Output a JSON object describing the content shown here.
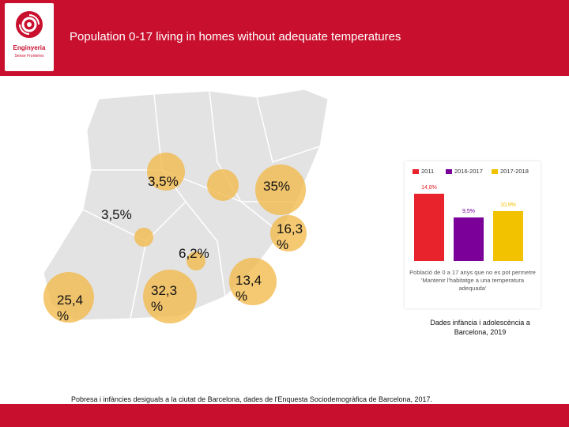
{
  "header": {
    "title": "Population 0-17 living in homes without adequate temperatures",
    "logo_name": "Enginyeria",
    "logo_tagline": "Sense Fronteres"
  },
  "colors": {
    "brand": "#c8102e",
    "bubble": "#f2b84a",
    "map_fill": "#e3e3e3",
    "series_2011": "#e8232b",
    "series_2016_2017": "#7a0099",
    "series_2017_2018": "#f2c200"
  },
  "map_labels": [
    "3,5%",
    "35%",
    "3,5%",
    "16,3 %",
    "6,2%",
    "13,4 %",
    "25,4 %",
    "32,3 %"
  ],
  "chart_data": {
    "type": "bar",
    "categories": [
      "2011",
      "2016-2017",
      "2017-2018"
    ],
    "values": [
      14.8,
      9.5,
      10.9
    ],
    "value_labels": [
      "14,8%",
      "9,5%",
      "10,9%"
    ],
    "ylim": [
      0,
      16
    ],
    "caption": "Població de 0 a 17 anys que no es pot permetre 'Mantenir l'habitatge a una temperatura adequada'"
  },
  "sources": {
    "chart_source": "Dades infància i adolescència a Barcelona, 2019",
    "bottom_source": "Pobresa i infàncies desiguals a la ciutat de Barcelona, dades de l'Enquesta Sociodemogràfica de Barcelona, 2017."
  }
}
